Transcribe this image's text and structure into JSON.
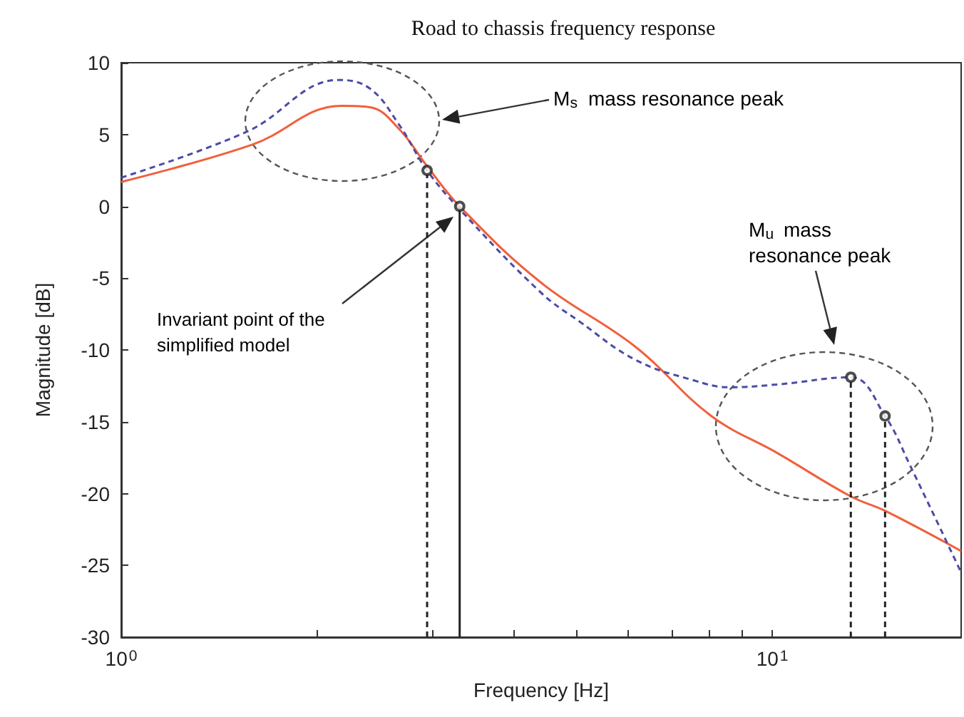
{
  "chart_data": {
    "type": "line",
    "title": "Road to chassis frequency response",
    "xlabel": "Frequency [Hz]",
    "ylabel": "Magnitude [dB]",
    "log": "x",
    "xlim": [
      1,
      19.5
    ],
    "xticks": [
      {
        "value": 1,
        "label": "10$^{0}$"
      },
      {
        "value": 2,
        "label": null
      },
      {
        "value": 3,
        "label": null
      },
      {
        "value": 4,
        "label": null
      },
      {
        "value": 5,
        "label": null
      },
      {
        "value": 6,
        "label": null
      },
      {
        "value": 7,
        "label": null
      },
      {
        "value": 8,
        "label": null
      },
      {
        "value": 9,
        "label": null
      },
      {
        "value": 10,
        "label": "10$^{1}$"
      }
    ],
    "ylim": [
      -30,
      10
    ],
    "yticks": [
      -30,
      -25,
      -20,
      -15,
      -10,
      -5,
      0,
      5,
      10
    ],
    "grid": false,
    "series": [
      {
        "color": "#f0603c",
        "line_style": "solid",
        "marker": "none",
        "x": [
          1,
          1.59,
          2.18,
          2.41,
          2.67,
          2.95,
          3.31,
          4.41,
          6.17,
          8.06,
          10.2,
          13.2,
          14.9,
          19.5
        ],
        "values": [
          1.7,
          4.3,
          7.0,
          6.9,
          5.4,
          2.8,
          0,
          -5.3,
          -9.8,
          -14.6,
          -17.2,
          -20.2,
          -21.2,
          -24
        ]
      },
      {
        "color": "#4b4ba8",
        "line_style": "dashed",
        "marker": "none",
        "x": [
          1,
          1.56,
          2.16,
          2.41,
          2.67,
          2.95,
          3.31,
          4.41,
          5.05,
          6.17,
          7.55,
          8.6,
          10.2,
          13.2,
          14.9,
          16.3,
          19.5
        ],
        "values": [
          2.0,
          5.2,
          8.8,
          8.2,
          5.7,
          2.5,
          -0.2,
          -6.0,
          -8.0,
          -10.7,
          -12.1,
          -12.6,
          -12.4,
          -11.9,
          -14.6,
          -18.1,
          -25.5
        ]
      },
      {
        "color": "#222222",
        "line_style": "dashed",
        "marker": "none",
        "x": [
          2.95,
          2.95
        ],
        "values": [
          -30,
          2.5
        ]
      },
      {
        "color": "#222222",
        "line_style": "solid",
        "marker": "none",
        "x": [
          3.31,
          3.31
        ],
        "values": [
          -30,
          0
        ]
      },
      {
        "color": "#222222",
        "line_style": "dashed",
        "marker": "none",
        "x": [
          13.2,
          13.2
        ],
        "values": [
          -30,
          -11.9
        ]
      },
      {
        "color": "#222222",
        "line_style": "dashed",
        "marker": "none",
        "x": [
          14.9,
          14.9
        ],
        "values": [
          -30,
          -14.6
        ]
      },
      {
        "type": "scatter",
        "color": "#222222",
        "marker": "circle",
        "x": [
          2.95,
          3.31,
          13.2,
          14.9
        ],
        "values": [
          2.5,
          0,
          -11.9,
          -14.6
        ]
      }
    ],
    "annotations": [
      "M$_{s}$ mass resonance peak",
      "M$_{u}$ mass resonance peak",
      "Invariant point of the simplified model"
    ]
  }
}
